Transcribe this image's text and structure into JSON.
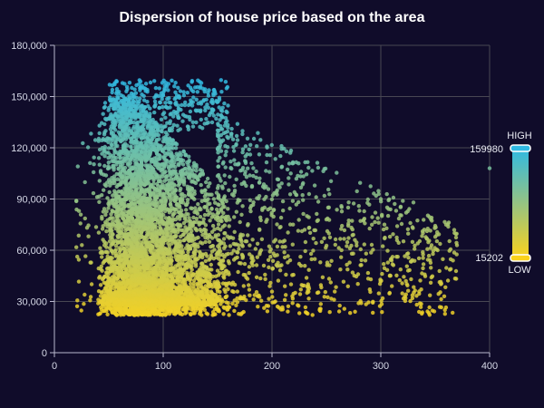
{
  "chart_data": {
    "type": "scatter",
    "title": "Dispersion of house price based on the area",
    "xlabel": "",
    "ylabel": "",
    "xlim": [
      0,
      400
    ],
    "ylim": [
      0,
      180000
    ],
    "x_ticks": [
      "0",
      "100",
      "200",
      "300",
      "400"
    ],
    "y_ticks": [
      "0",
      "30,000",
      "60,000",
      "90,000",
      "120,000",
      "150,000",
      "180,000"
    ],
    "grid": true,
    "color_scale": {
      "high_label": "HIGH",
      "low_label": "LOW",
      "max_value": "159980",
      "min_value": "15202",
      "colors": [
        "#fbd21c",
        "#95c383",
        "#2fb9e3"
      ]
    },
    "series": [
      {
        "description": "approx. 8000 house sales; dense cluster at area 40-160 and price 25,000-140,000, sparse tail out to area 400",
        "x": [
          55,
          60,
          65,
          70,
          75,
          80,
          85,
          90,
          100,
          110,
          120,
          130,
          140,
          150,
          160,
          175,
          190,
          210,
          230,
          250,
          270,
          300,
          330,
          360,
          400
        ],
        "y": [
          145000,
          132000,
          118000,
          105000,
          95000,
          88000,
          80000,
          72000,
          65000,
          60000,
          56000,
          52000,
          50000,
          48000,
          47000,
          52000,
          60000,
          65000,
          72000,
          78000,
          85000,
          90000,
          88000,
          75000,
          108000
        ]
      }
    ]
  }
}
